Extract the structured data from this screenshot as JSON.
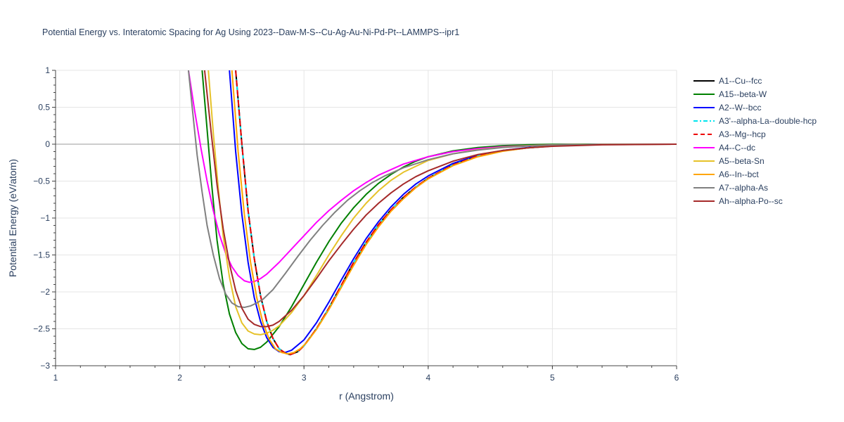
{
  "chart_data": {
    "type": "line",
    "title": "Potential Energy vs. Interatomic Spacing for Ag Using 2023--Daw-M-S--Cu-Ag-Au-Ni-Pd-Pt--LAMMPS--ipr1",
    "xlabel": "r (Angstrom)",
    "ylabel": "Potential Energy (eV/atom)",
    "xlim": [
      1,
      6
    ],
    "ylim": [
      -3,
      1
    ],
    "x_ticks": [
      "1",
      "2",
      "3",
      "4",
      "5",
      "6"
    ],
    "y_ticks": [
      "1",
      "0.5",
      "0",
      "−0.5",
      "−1",
      "−1.5",
      "−2",
      "−2.5",
      "−3"
    ],
    "grid": true,
    "legend_position": "right",
    "series": [
      {
        "name": "A1--Cu--fcc",
        "color": "#000000",
        "dash": "solid",
        "x": [
          2.45,
          2.5,
          2.55,
          2.6,
          2.65,
          2.7,
          2.75,
          2.8,
          2.85,
          2.89,
          2.95,
          3.0,
          3.1,
          3.2,
          3.3,
          3.4,
          3.5,
          3.6,
          3.7,
          3.8,
          3.9,
          4.0,
          4.2,
          4.4,
          4.6,
          4.8,
          5.0,
          5.2,
          5.4,
          5.6,
          6.0
        ],
        "y": [
          1.0,
          0.0,
          -0.9,
          -1.55,
          -2.05,
          -2.4,
          -2.63,
          -2.77,
          -2.83,
          -2.85,
          -2.81,
          -2.73,
          -2.5,
          -2.22,
          -1.91,
          -1.6,
          -1.33,
          -1.09,
          -0.89,
          -0.72,
          -0.58,
          -0.46,
          -0.28,
          -0.16,
          -0.09,
          -0.05,
          -0.025,
          -0.01,
          -0.003,
          0.0,
          0.0
        ]
      },
      {
        "name": "A15--beta-W",
        "color": "#008000",
        "dash": "solid",
        "x": [
          2.18,
          2.22,
          2.26,
          2.3,
          2.35,
          2.4,
          2.45,
          2.5,
          2.55,
          2.6,
          2.65,
          2.7,
          2.8,
          2.9,
          3.0,
          3.1,
          3.2,
          3.3,
          3.4,
          3.5,
          3.6,
          3.7,
          3.8,
          3.9,
          4.0,
          4.2,
          4.4,
          4.6,
          4.8,
          5.0,
          5.4,
          6.0
        ],
        "y": [
          1.0,
          0.2,
          -0.6,
          -1.3,
          -1.9,
          -2.3,
          -2.55,
          -2.7,
          -2.77,
          -2.78,
          -2.75,
          -2.68,
          -2.47,
          -2.2,
          -1.9,
          -1.6,
          -1.32,
          -1.07,
          -0.86,
          -0.68,
          -0.53,
          -0.41,
          -0.31,
          -0.23,
          -0.17,
          -0.09,
          -0.045,
          -0.02,
          -0.008,
          -0.003,
          0.0,
          0.0
        ]
      },
      {
        "name": "A2--W--bcc",
        "color": "#0000ff",
        "dash": "solid",
        "x": [
          2.4,
          2.45,
          2.5,
          2.55,
          2.6,
          2.65,
          2.7,
          2.75,
          2.8,
          2.85,
          2.9,
          3.0,
          3.1,
          3.2,
          3.3,
          3.4,
          3.5,
          3.6,
          3.7,
          3.8,
          3.9,
          4.0,
          4.2,
          4.4,
          4.6,
          4.8,
          5.0,
          5.2,
          5.4,
          6.0
        ],
        "y": [
          1.0,
          -0.1,
          -0.95,
          -1.6,
          -2.08,
          -2.4,
          -2.62,
          -2.75,
          -2.81,
          -2.82,
          -2.79,
          -2.65,
          -2.42,
          -2.14,
          -1.84,
          -1.55,
          -1.28,
          -1.05,
          -0.85,
          -0.68,
          -0.54,
          -0.43,
          -0.26,
          -0.15,
          -0.085,
          -0.045,
          -0.02,
          -0.008,
          -0.002,
          0.0
        ]
      },
      {
        "name": "A3'--alpha-La--double-hcp",
        "color": "#00e5ee",
        "dash": "dashdot",
        "x": [
          2.45,
          2.5,
          2.55,
          2.6,
          2.65,
          2.7,
          2.75,
          2.8,
          2.85,
          2.89,
          2.95,
          3.0,
          3.1,
          3.2,
          3.3,
          3.4,
          3.5,
          3.6,
          3.7,
          3.8,
          3.9,
          4.0,
          4.2,
          4.4,
          4.6,
          4.8,
          5.0,
          5.2,
          5.4,
          5.6,
          6.0
        ],
        "y": [
          1.0,
          0.0,
          -0.9,
          -1.55,
          -2.05,
          -2.4,
          -2.63,
          -2.77,
          -2.83,
          -2.85,
          -2.81,
          -2.73,
          -2.5,
          -2.22,
          -1.91,
          -1.6,
          -1.33,
          -1.09,
          -0.89,
          -0.72,
          -0.58,
          -0.46,
          -0.28,
          -0.16,
          -0.09,
          -0.05,
          -0.025,
          -0.01,
          -0.003,
          0.0,
          0.0
        ]
      },
      {
        "name": "A3--Mg--hcp",
        "color": "#ee0000",
        "dash": "dash",
        "x": [
          2.45,
          2.5,
          2.55,
          2.6,
          2.65,
          2.7,
          2.75,
          2.8,
          2.85,
          2.89,
          2.95,
          3.0,
          3.1,
          3.2,
          3.3,
          3.4,
          3.5,
          3.6,
          3.7,
          3.8,
          3.9,
          4.0,
          4.2,
          4.4,
          4.6,
          4.8,
          5.0,
          5.2,
          5.4,
          5.6,
          6.0
        ],
        "y": [
          1.0,
          0.0,
          -0.9,
          -1.55,
          -2.05,
          -2.4,
          -2.63,
          -2.77,
          -2.83,
          -2.85,
          -2.81,
          -2.73,
          -2.5,
          -2.22,
          -1.91,
          -1.6,
          -1.33,
          -1.09,
          -0.89,
          -0.72,
          -0.58,
          -0.46,
          -0.28,
          -0.16,
          -0.09,
          -0.05,
          -0.025,
          -0.01,
          -0.003,
          0.0,
          0.0
        ]
      },
      {
        "name": "A4--C--dc",
        "color": "#ff00ff",
        "dash": "solid",
        "x": [
          2.07,
          2.12,
          2.17,
          2.22,
          2.27,
          2.32,
          2.37,
          2.42,
          2.47,
          2.52,
          2.56,
          2.6,
          2.65,
          2.7,
          2.8,
          2.9,
          3.0,
          3.1,
          3.2,
          3.3,
          3.4,
          3.5,
          3.6,
          3.8,
          4.0,
          4.2,
          4.4,
          4.6,
          4.8,
          5.0,
          5.4,
          6.0
        ],
        "y": [
          1.0,
          0.45,
          -0.05,
          -0.5,
          -0.9,
          -1.23,
          -1.48,
          -1.66,
          -1.78,
          -1.85,
          -1.87,
          -1.86,
          -1.82,
          -1.76,
          -1.6,
          -1.42,
          -1.24,
          -1.06,
          -0.9,
          -0.76,
          -0.63,
          -0.52,
          -0.42,
          -0.27,
          -0.17,
          -0.1,
          -0.06,
          -0.035,
          -0.02,
          -0.01,
          -0.002,
          0.0
        ]
      },
      {
        "name": "A5--beta-Sn",
        "color": "#e6c229",
        "dash": "solid",
        "x": [
          2.23,
          2.27,
          2.31,
          2.35,
          2.4,
          2.45,
          2.5,
          2.55,
          2.6,
          2.65,
          2.7,
          2.75,
          2.8,
          2.9,
          3.0,
          3.1,
          3.2,
          3.3,
          3.4,
          3.5,
          3.6,
          3.7,
          3.8,
          4.0,
          4.2,
          4.4,
          4.6,
          4.8,
          5.0,
          5.4,
          6.0
        ],
        "y": [
          1.0,
          0.15,
          -0.6,
          -1.25,
          -1.8,
          -2.2,
          -2.42,
          -2.53,
          -2.57,
          -2.58,
          -2.56,
          -2.52,
          -2.46,
          -2.28,
          -2.05,
          -1.78,
          -1.5,
          -1.24,
          -1.0,
          -0.8,
          -0.63,
          -0.49,
          -0.38,
          -0.22,
          -0.13,
          -0.075,
          -0.042,
          -0.022,
          -0.011,
          -0.002,
          0.0
        ]
      },
      {
        "name": "A6--In--bct",
        "color": "#ffa500",
        "dash": "solid",
        "x": [
          2.42,
          2.47,
          2.52,
          2.57,
          2.62,
          2.67,
          2.72,
          2.77,
          2.82,
          2.87,
          2.92,
          2.97,
          3.02,
          3.1,
          3.2,
          3.3,
          3.4,
          3.5,
          3.6,
          3.7,
          3.8,
          3.9,
          4.0,
          4.2,
          4.4,
          4.6,
          4.8,
          5.0,
          5.2,
          5.4,
          6.0
        ],
        "y": [
          1.0,
          -0.1,
          -0.95,
          -1.6,
          -2.08,
          -2.42,
          -2.64,
          -2.77,
          -2.82,
          -2.84,
          -2.82,
          -2.77,
          -2.69,
          -2.51,
          -2.24,
          -1.94,
          -1.64,
          -1.36,
          -1.12,
          -0.91,
          -0.74,
          -0.59,
          -0.47,
          -0.29,
          -0.17,
          -0.095,
          -0.05,
          -0.025,
          -0.01,
          -0.003,
          0.0
        ]
      },
      {
        "name": "A7--alpha-As",
        "color": "#808080",
        "dash": "solid",
        "x": [
          2.07,
          2.1,
          2.14,
          2.18,
          2.22,
          2.27,
          2.32,
          2.37,
          2.42,
          2.47,
          2.52,
          2.57,
          2.62,
          2.67,
          2.75,
          2.85,
          2.95,
          3.05,
          3.15,
          3.25,
          3.35,
          3.45,
          3.55,
          3.65,
          3.8,
          4.0,
          4.2,
          4.4,
          4.6,
          4.8,
          5.0,
          5.4,
          6.0
        ],
        "y": [
          1.0,
          0.5,
          -0.15,
          -0.65,
          -1.1,
          -1.5,
          -1.82,
          -2.03,
          -2.15,
          -2.2,
          -2.21,
          -2.19,
          -2.15,
          -2.1,
          -1.97,
          -1.75,
          -1.52,
          -1.3,
          -1.1,
          -0.92,
          -0.76,
          -0.63,
          -0.52,
          -0.43,
          -0.32,
          -0.21,
          -0.13,
          -0.08,
          -0.045,
          -0.025,
          -0.012,
          -0.002,
          0.0
        ]
      },
      {
        "name": "Ah--alpha-Po--sc",
        "color": "#a52a2a",
        "dash": "solid",
        "x": [
          2.2,
          2.25,
          2.3,
          2.35,
          2.4,
          2.45,
          2.5,
          2.55,
          2.6,
          2.65,
          2.7,
          2.75,
          2.8,
          2.9,
          3.0,
          3.1,
          3.2,
          3.3,
          3.4,
          3.5,
          3.6,
          3.7,
          3.8,
          3.9,
          4.0,
          4.2,
          4.4,
          4.6,
          4.8,
          5.0,
          5.4,
          6.0
        ],
        "y": [
          1.0,
          0.2,
          -0.55,
          -1.15,
          -1.62,
          -1.98,
          -2.22,
          -2.37,
          -2.44,
          -2.47,
          -2.47,
          -2.45,
          -2.4,
          -2.25,
          -2.05,
          -1.82,
          -1.58,
          -1.36,
          -1.15,
          -0.96,
          -0.8,
          -0.66,
          -0.54,
          -0.44,
          -0.36,
          -0.23,
          -0.14,
          -0.085,
          -0.05,
          -0.028,
          -0.008,
          0.0
        ]
      }
    ]
  }
}
